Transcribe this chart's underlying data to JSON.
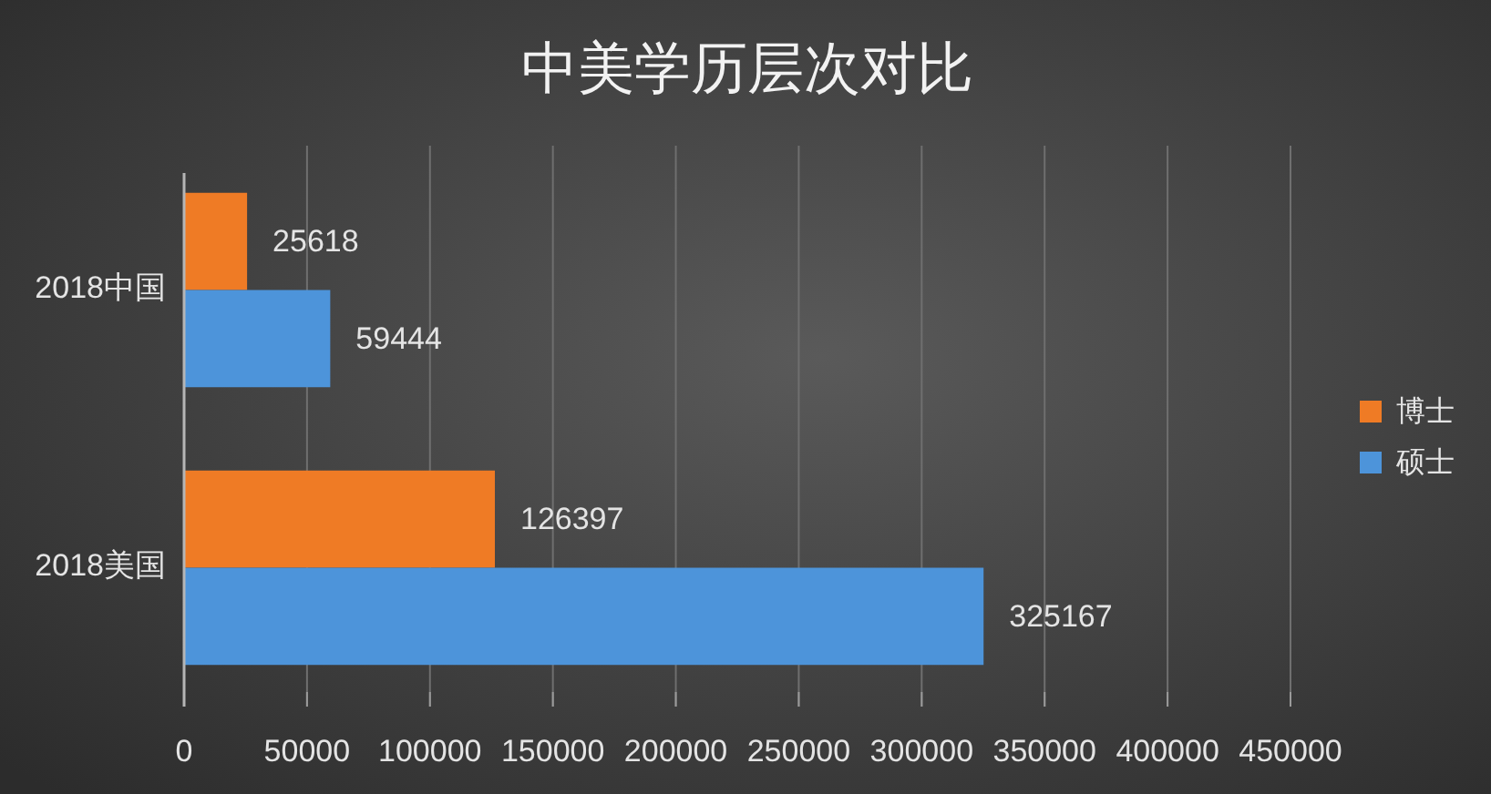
{
  "chart_data": {
    "type": "bar",
    "orientation": "horizontal",
    "title": "中美学历层次对比",
    "categories": [
      "2018中国",
      "2018美国"
    ],
    "series": [
      {
        "name": "博士",
        "color": "#ef7b25",
        "values": [
          25618,
          126397
        ]
      },
      {
        "name": "硕士",
        "color": "#4d94da",
        "values": [
          59444,
          325167
        ]
      }
    ],
    "xlim": [
      0,
      450000
    ],
    "xticks": [
      0,
      50000,
      100000,
      150000,
      200000,
      250000,
      300000,
      350000,
      400000,
      450000
    ],
    "grid": "x",
    "legend": "right",
    "data_labels": true
  }
}
